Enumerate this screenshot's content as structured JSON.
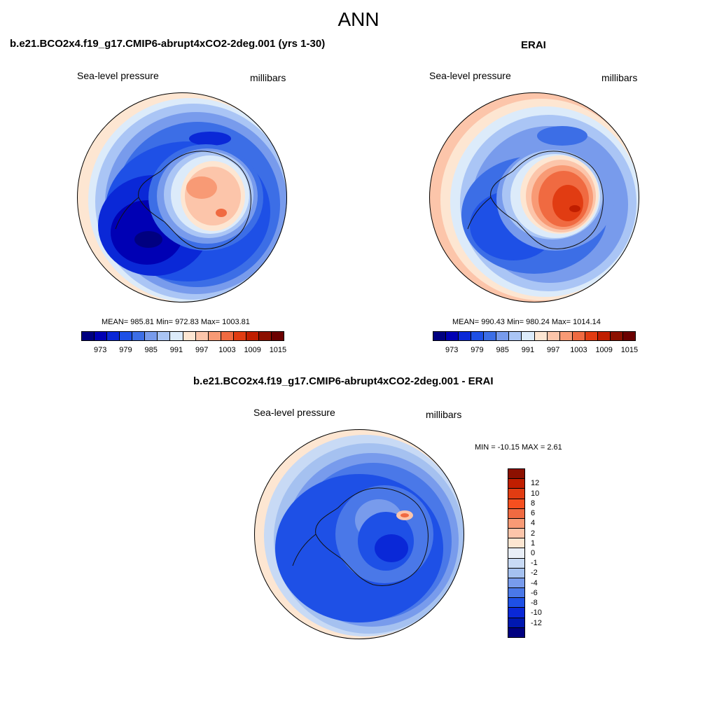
{
  "season": "ANN",
  "panels": {
    "model": {
      "title": "b.e21.BCO2x4.f19_g17.CMIP6-abrupt4xCO2-2deg.001 (yrs 1-30)",
      "variable": "Sea-level pressure",
      "units": "millibars",
      "stats": "MEAN= 985.81  Min= 972.83  Max= 1003.81"
    },
    "obs": {
      "title": "ERAI",
      "variable": "Sea-level pressure",
      "units": "millibars",
      "stats": "MEAN= 990.43  Min= 980.24  Max= 1014.14"
    },
    "diff": {
      "title": "b.e21.BCO2x4.f19_g17.CMIP6-abrupt4xCO2-2deg.001 - ERAI",
      "variable": "Sea-level pressure",
      "units": "millibars",
      "stats": "MIN = -10.15 MAX =   2.61"
    }
  },
  "colorbar_abs": {
    "colors": [
      "#000080",
      "#0000b4",
      "#0a28d7",
      "#1e50e6",
      "#3c6ee6",
      "#789bec",
      "#aac5f5",
      "#dcebfa",
      "#fde6d2",
      "#fcc5aa",
      "#f89a75",
      "#f06a41",
      "#e13c12",
      "#c01e00",
      "#8c1000",
      "#6b0000"
    ],
    "ticks": [
      "973",
      "979",
      "985",
      "991",
      "997",
      "1003",
      "1009",
      "1015"
    ]
  },
  "colorbar_diff": {
    "colors": [
      "#8c1000",
      "#c01e00",
      "#e13c12",
      "#f64f1f",
      "#f06a41",
      "#f89a75",
      "#fcc5aa",
      "#fde6d2",
      "#e8eef7",
      "#c8daf5",
      "#a5c1f0",
      "#789bec",
      "#4a78e8",
      "#1e50e6",
      "#0a28d7",
      "#0018b0",
      "#000080"
    ],
    "labels": [
      "12",
      "10",
      "8",
      "6",
      "4",
      "2",
      "1",
      "0",
      "-1",
      "-2",
      "-4",
      "-6",
      "-8",
      "-10",
      "-12"
    ]
  },
  "chart_data": [
    {
      "type": "heatmap",
      "title": "b.e21.BCO2x4.f19_g17.CMIP6-abrupt4xCO2-2deg.001 (yrs 1-30)",
      "projection": "south polar stereographic",
      "variable": "Sea-level pressure",
      "units": "millibars",
      "mean": 985.81,
      "min": 972.83,
      "max": 1003.81,
      "contour_levels": [
        973,
        976,
        979,
        982,
        985,
        988,
        991,
        994,
        997,
        1000,
        1003,
        1006,
        1009,
        1012,
        1015
      ]
    },
    {
      "type": "heatmap",
      "title": "ERAI",
      "projection": "south polar stereographic",
      "variable": "Sea-level pressure",
      "units": "millibars",
      "mean": 990.43,
      "min": 980.24,
      "max": 1014.14,
      "contour_levels": [
        973,
        976,
        979,
        982,
        985,
        988,
        991,
        994,
        997,
        1000,
        1003,
        1006,
        1009,
        1012,
        1015
      ]
    },
    {
      "type": "heatmap",
      "title": "b.e21.BCO2x4.f19_g17.CMIP6-abrupt4xCO2-2deg.001 - ERAI",
      "projection": "south polar stereographic",
      "variable": "Sea-level pressure",
      "units": "millibars",
      "min": -10.15,
      "max": 2.61,
      "contour_levels": [
        -12,
        -10,
        -8,
        -6,
        -4,
        -2,
        -1,
        0,
        1,
        2,
        4,
        6,
        8,
        10,
        12
      ]
    }
  ]
}
